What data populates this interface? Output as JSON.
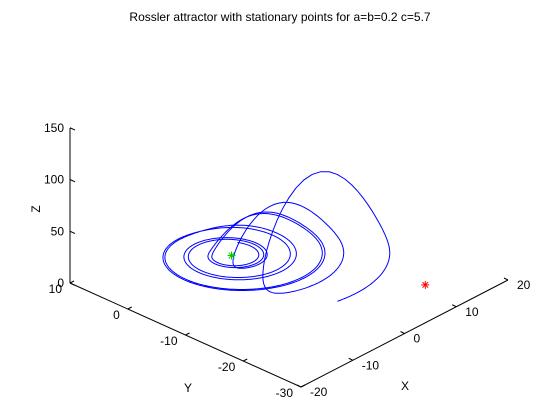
{
  "chart_data": {
    "type": "line3d",
    "title": "Rossler attractor with stationary points for a=b=0.2 c=5.7",
    "xlabel": "X",
    "ylabel": "Y",
    "zlabel": "Z",
    "xlim": [
      -20,
      20
    ],
    "ylim": [
      -30,
      10
    ],
    "zlim": [
      0,
      150
    ],
    "xticks": [
      "-20",
      "-10",
      "0",
      "10",
      "20"
    ],
    "yticks": [
      "10",
      "0",
      "-10",
      "-20",
      "-30"
    ],
    "zticks": [
      "0",
      "50",
      "100",
      "150"
    ],
    "grid": false,
    "params": {
      "a": 0.2,
      "b": 0.2,
      "c": 5.7
    },
    "series": [
      {
        "kind": "trajectory",
        "color": "#0000ff"
      }
    ],
    "points": [
      {
        "label": "stationary point (near origin)",
        "marker": "*",
        "color": "#00cc00",
        "x": 0.007,
        "y": -0.035,
        "z": 0.035
      },
      {
        "label": "stationary point (outer)",
        "marker": "*",
        "color": "#ff0000",
        "x": 5.69,
        "y": -28.5,
        "z": 28.5
      }
    ]
  }
}
